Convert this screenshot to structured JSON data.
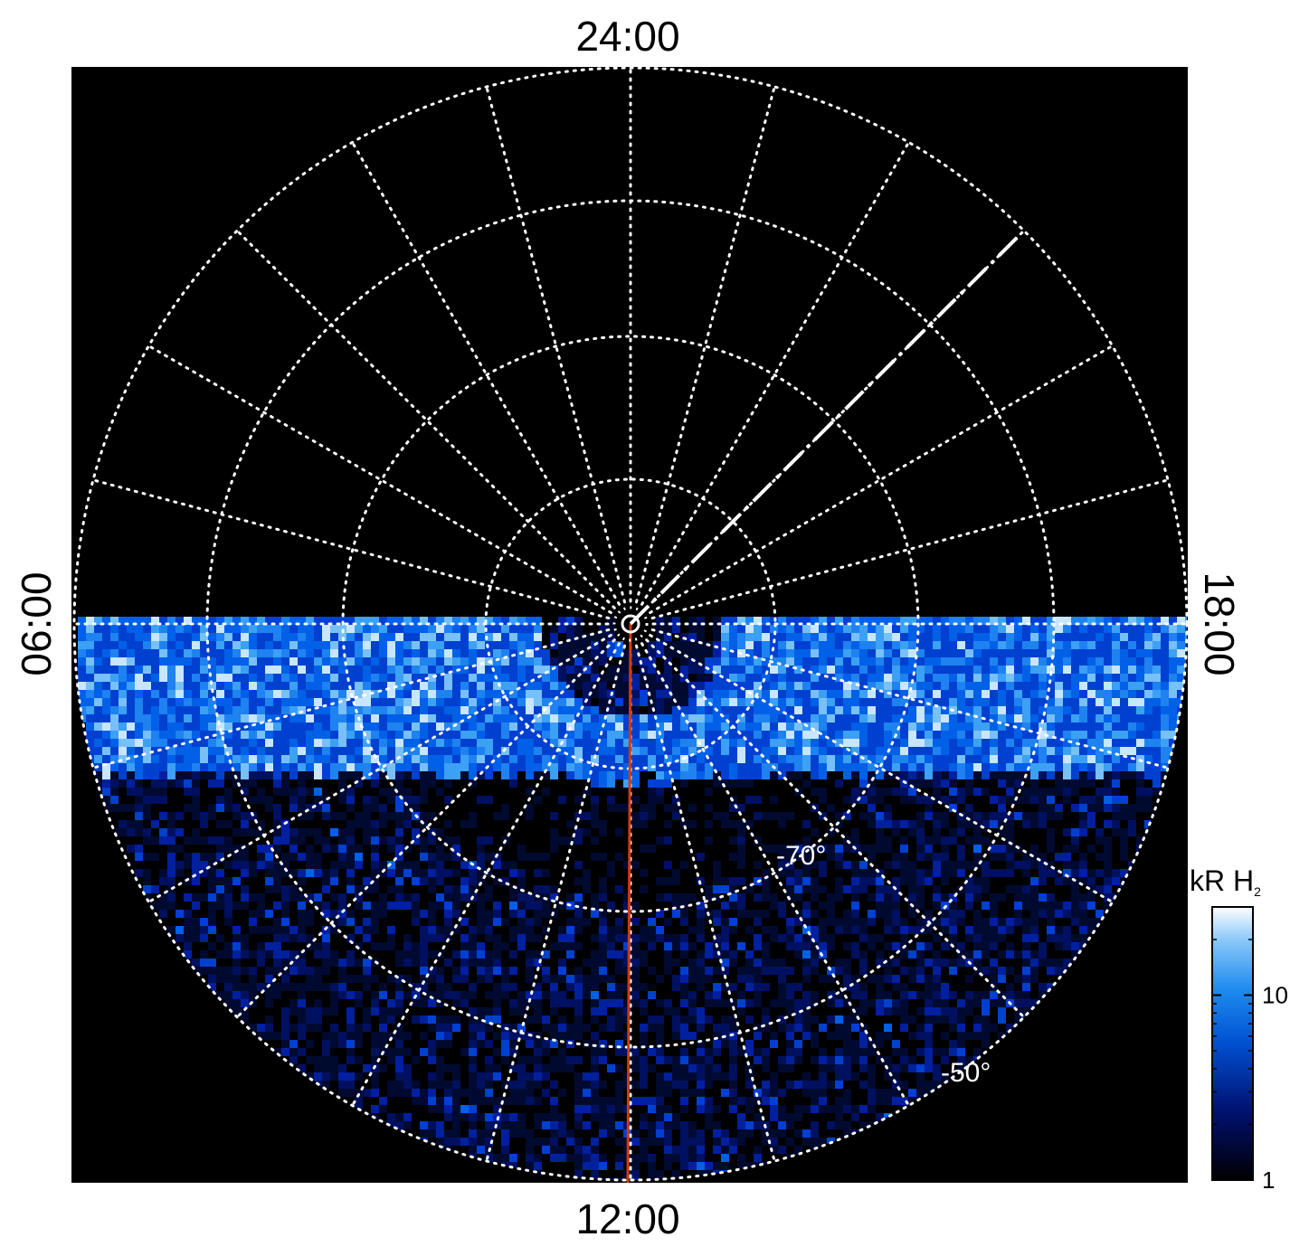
{
  "labels": {
    "top": "24:00",
    "left": "06:00",
    "bottom": "12:00",
    "right": "18:00"
  },
  "latitude_labels": [
    "-70°",
    "-50°"
  ],
  "colorbar": {
    "title": "kR H",
    "title_subscript": "2",
    "log_scale": true,
    "range": [
      1,
      30
    ],
    "ticks": [
      1,
      10
    ]
  }
}
